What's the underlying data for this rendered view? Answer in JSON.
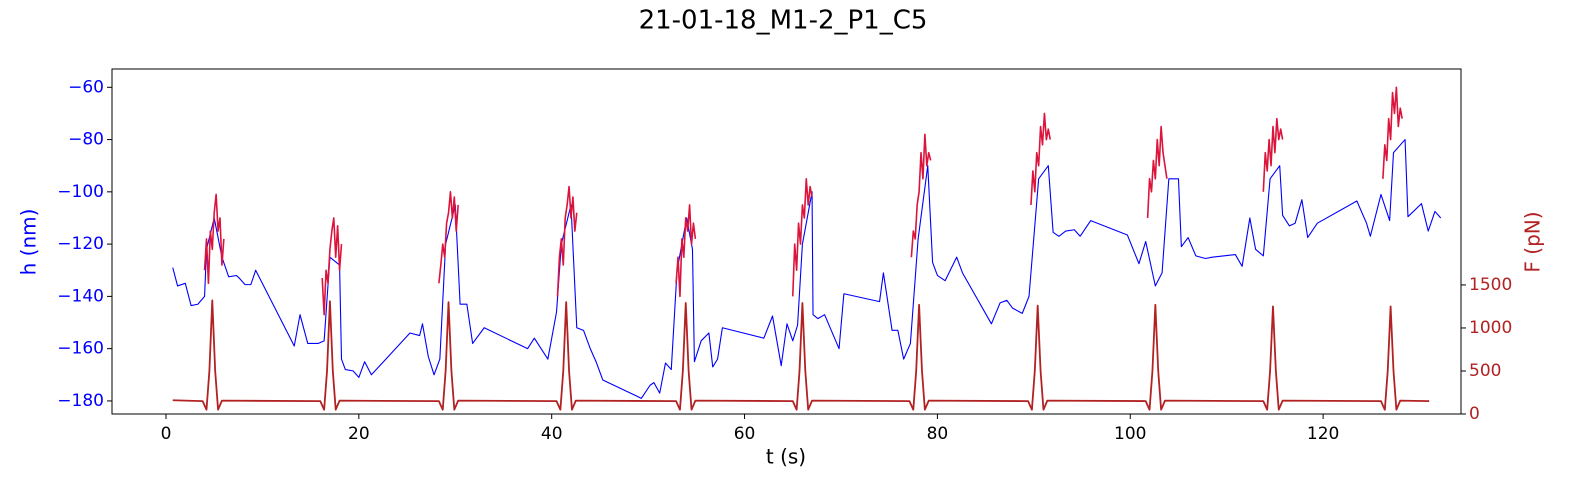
{
  "chart_data": {
    "type": "line",
    "title": "21-01-18_M1-2_P1_C5",
    "xlabel": "t (s)",
    "ylabel": "h (nm)",
    "y2label": "F (pN)",
    "ycolor": "#0000ff",
    "y2color": "#b22222",
    "xlim": [
      -5.6,
      134.3
    ],
    "xticks": [
      0,
      20,
      40,
      60,
      80,
      100,
      120
    ],
    "ylim": [
      -185,
      -53
    ],
    "yticks": [
      {
        "value": -180,
        "label": "−180"
      },
      {
        "value": -160,
        "label": "−160"
      },
      {
        "value": -140,
        "label": "−140"
      },
      {
        "value": -120,
        "label": "−120"
      },
      {
        "value": -100,
        "label": "−100"
      },
      {
        "value": -80,
        "label": "−80"
      },
      {
        "value": -60,
        "label": "−60"
      }
    ],
    "y2lim": [
      0,
      4010
    ],
    "y2ticks": [
      0,
      500,
      1000,
      1500
    ],
    "grid": false,
    "series": [
      {
        "color": "#0000ff",
        "axis": "y",
        "x": [
          0.7,
          1.2,
          2,
          2.6,
          3.3,
          4,
          4.2,
          5,
          5.8,
          6.5,
          7.3,
          7.6,
          8.2,
          8.8,
          9.3,
          13.3,
          13.9,
          14.7,
          15.8,
          16.4,
          17,
          18,
          18.2,
          18.6,
          19.4,
          20,
          20.6,
          21.3,
          25.3,
          26.3,
          26.6,
          27.2,
          27.8,
          28.4,
          29,
          30,
          30.5,
          31.2,
          31.8,
          33,
          37.5,
          38.2,
          39.6,
          40.5,
          41,
          42,
          42.6,
          43.3,
          44,
          44.6,
          45.3,
          49.3,
          50.2,
          50.6,
          51.2,
          51.8,
          52.4,
          53,
          54,
          54.6,
          54.8,
          55.5,
          56.3,
          56.7,
          57.2,
          57.7,
          62,
          62.9,
          63.8,
          64.4,
          65,
          65.5,
          66,
          67,
          67.1,
          67.6,
          68.3,
          69.8,
          70.3,
          74,
          74.4,
          75.3,
          75.9,
          76.5,
          77.2,
          78,
          79,
          79.5,
          80,
          80.8,
          82,
          82.6,
          85.6,
          86.5,
          87.2,
          87.8,
          88.8,
          89.5,
          90.5,
          91.5,
          92,
          92.6,
          93.3,
          94.2,
          94.8,
          95.9,
          99.7,
          100.9,
          101.6,
          102.6,
          103.3,
          104,
          105,
          105.3,
          106,
          106.8,
          107.8,
          108.5,
          110.9,
          111.6,
          112.4,
          113,
          113.8,
          114.5,
          115.5,
          115.8,
          116.5,
          117.1,
          117.8,
          118.4,
          119.4,
          123.5,
          124.5,
          124.9,
          126,
          126.9,
          127.3,
          128.5,
          128.8,
          130.2,
          130.9,
          131.6,
          132.2
        ],
        "values": [
          -129,
          -136,
          -135,
          -143.5,
          -143,
          -140,
          -122,
          -110,
          -125,
          -132.5,
          -132,
          -133,
          -135.5,
          -135.5,
          -130,
          -159,
          -147,
          -158,
          -158,
          -157,
          -125,
          -128,
          -164,
          -168,
          -168.5,
          -171,
          -165,
          -170,
          -154,
          -155,
          -150.5,
          -163,
          -170,
          -164,
          -120,
          -105,
          -143,
          -143,
          -158,
          -152,
          -160,
          -156,
          -164,
          -146,
          -120,
          -105,
          -152,
          -153,
          -160,
          -165,
          -172,
          -179,
          -174,
          -173,
          -177,
          -165.5,
          -168,
          -130,
          -110,
          -122,
          -165,
          -157,
          -154,
          -167,
          -164,
          -152,
          -156,
          -147.5,
          -166.5,
          -150.5,
          -157,
          -151,
          -120,
          -100,
          -147,
          -148.5,
          -147,
          -160,
          -139,
          -142,
          -131,
          -153,
          -153,
          -164,
          -158,
          -118,
          -90,
          -127,
          -132,
          -134,
          -125,
          -131,
          -150.5,
          -142.5,
          -141.5,
          -144.5,
          -146.5,
          -140,
          -95,
          -90,
          -115.5,
          -117,
          -115,
          -114.5,
          -117,
          -111,
          -116.5,
          -127.5,
          -119,
          -136,
          -131,
          -95,
          -95,
          -121,
          -117.5,
          -124.5,
          -125.5,
          -125,
          -124,
          -128.5,
          -110,
          -122,
          -124.5,
          -95,
          -90,
          -109,
          -113,
          -112,
          -103,
          -117.5,
          -112,
          -103.5,
          -112,
          -117,
          -101,
          -111,
          -85,
          -80,
          -109.5,
          -104.5,
          -115,
          -107.5,
          -110
        ]
      },
      {
        "color": "#dc143c",
        "axis": "y",
        "x": [
          4.0,
          4.2,
          4.4,
          4.6,
          4.8,
          5.0,
          5.2,
          5.4,
          5.6,
          5.8,
          6.0
        ],
        "values": [
          -130,
          -118,
          -135,
          -115,
          -122,
          -108,
          -101,
          -115,
          -110,
          -128,
          -118
        ]
      },
      {
        "color": "#dc143c",
        "axis": "y",
        "x": [
          16.2,
          16.4,
          16.6,
          16.8,
          17.0,
          17.2,
          17.4,
          17.6,
          17.8,
          18.0,
          18.2
        ],
        "values": [
          -133,
          -147,
          -130,
          -135,
          -122,
          -115,
          -110,
          -125,
          -113,
          -130,
          -120
        ]
      },
      {
        "color": "#dc143c",
        "axis": "y",
        "x": [
          28.3,
          28.5,
          28.7,
          28.9,
          29.1,
          29.3,
          29.5,
          29.7,
          29.9,
          30.1,
          30.3
        ],
        "values": [
          -135,
          -128,
          -120,
          -125,
          -112,
          -108,
          -100,
          -110,
          -102,
          -115,
          -105
        ]
      },
      {
        "color": "#dc143c",
        "axis": "y",
        "x": [
          40.6,
          40.8,
          41.0,
          41.2,
          41.4,
          41.6,
          41.8,
          42.0,
          42.2,
          42.4,
          42.6
        ],
        "values": [
          -140,
          -125,
          -118,
          -128,
          -110,
          -105,
          -98,
          -110,
          -102,
          -115,
          -108
        ]
      },
      {
        "color": "#dc143c",
        "axis": "y",
        "x": [
          52.9,
          53.1,
          53.3,
          53.5,
          53.7,
          53.9,
          54.1,
          54.3,
          54.5,
          54.7,
          54.9
        ],
        "values": [
          -135,
          -125,
          -140,
          -118,
          -125,
          -110,
          -115,
          -105,
          -120,
          -112,
          -118
        ]
      },
      {
        "color": "#dc143c",
        "axis": "y",
        "x": [
          65.0,
          65.2,
          65.4,
          65.6,
          65.8,
          66.0,
          66.2,
          66.4,
          66.6,
          66.8,
          67.0
        ],
        "values": [
          -140,
          -120,
          -130,
          -112,
          -120,
          -105,
          -110,
          -95,
          -105,
          -98,
          -102
        ]
      },
      {
        "color": "#dc143c",
        "axis": "y",
        "x": [
          77.3,
          77.5,
          77.7,
          77.9,
          78.1,
          78.3,
          78.5,
          78.7,
          78.9,
          79.1,
          79.3
        ],
        "values": [
          -125,
          -115,
          -118,
          -105,
          -100,
          -85,
          -95,
          -78,
          -90,
          -85,
          -88
        ]
      },
      {
        "color": "#dc143c",
        "axis": "y",
        "x": [
          89.7,
          89.9,
          90.1,
          90.3,
          90.5,
          90.7,
          90.9,
          91.1,
          91.3,
          91.5,
          91.7
        ],
        "values": [
          -105,
          -92,
          -100,
          -85,
          -90,
          -75,
          -82,
          -70,
          -80,
          -76,
          -80
        ]
      },
      {
        "color": "#dc143c",
        "axis": "y",
        "x": [
          101.8,
          102.0,
          102.2,
          102.4,
          102.6,
          102.8,
          103.0,
          103.2,
          103.4,
          103.6,
          103.8
        ],
        "values": [
          -110,
          -95,
          -100,
          -88,
          -95,
          -80,
          -90,
          -75,
          -85,
          -90,
          -95
        ]
      },
      {
        "color": "#dc143c",
        "axis": "y",
        "x": [
          113.8,
          114.0,
          114.2,
          114.4,
          114.6,
          114.8,
          115.0,
          115.2,
          115.4,
          115.6,
          115.8
        ],
        "values": [
          -100,
          -85,
          -92,
          -80,
          -90,
          -75,
          -85,
          -72,
          -80,
          -76,
          -80
        ]
      },
      {
        "color": "#dc143c",
        "axis": "y",
        "x": [
          126.2,
          126.4,
          126.6,
          126.8,
          127.0,
          127.2,
          127.4,
          127.6,
          127.8,
          128.0,
          128.2
        ],
        "values": [
          -95,
          -82,
          -88,
          -72,
          -80,
          -62,
          -70,
          -60,
          -75,
          -68,
          -72
        ]
      },
      {
        "color": "#b22222",
        "axis": "y2",
        "x": [
          0.7,
          3.8,
          4.2,
          4.5,
          4.8,
          5.1,
          5.4,
          5.8,
          16.0,
          16.4,
          16.7,
          17.0,
          17.3,
          17.6,
          18.0,
          28.3,
          28.7,
          29.0,
          29.3,
          29.6,
          29.9,
          30.3,
          40.5,
          40.9,
          41.2,
          41.5,
          41.8,
          42.1,
          42.5,
          52.9,
          53.3,
          53.6,
          53.9,
          54.2,
          54.5,
          54.9,
          65.0,
          65.4,
          65.7,
          66.0,
          66.3,
          66.6,
          67.0,
          77.1,
          77.5,
          77.8,
          78.1,
          78.4,
          78.7,
          79.1,
          89.4,
          89.8,
          90.1,
          90.4,
          90.7,
          91.0,
          91.4,
          101.6,
          102.0,
          102.3,
          102.6,
          102.9,
          103.2,
          103.6,
          113.8,
          114.2,
          114.5,
          114.8,
          115.1,
          115.4,
          115.8,
          126.0,
          126.4,
          126.7,
          127.0,
          127.3,
          127.6,
          128.0,
          131.0
        ],
        "values": [
          160,
          150,
          50,
          500,
          1320,
          500,
          50,
          155,
          150,
          50,
          500,
          1310,
          500,
          50,
          155,
          150,
          50,
          500,
          1300,
          500,
          50,
          155,
          150,
          50,
          500,
          1300,
          500,
          50,
          155,
          150,
          50,
          500,
          1290,
          500,
          50,
          155,
          150,
          50,
          500,
          1290,
          500,
          50,
          155,
          150,
          50,
          500,
          1270,
          500,
          50,
          155,
          150,
          50,
          500,
          1260,
          500,
          50,
          155,
          150,
          50,
          500,
          1270,
          500,
          50,
          155,
          150,
          50,
          500,
          1250,
          500,
          50,
          155,
          150,
          50,
          500,
          1250,
          500,
          50,
          155,
          150
        ]
      }
    ]
  }
}
